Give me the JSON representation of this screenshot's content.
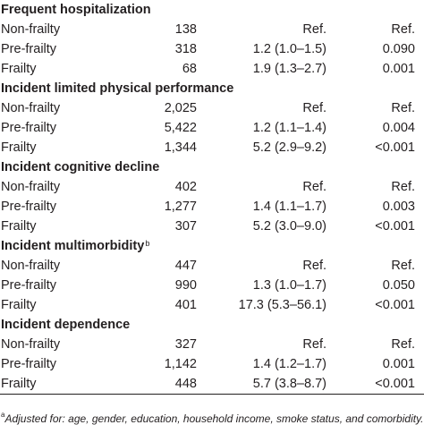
{
  "sections": [
    {
      "title": "Frequent hospitalization",
      "title_sup": "",
      "rows": [
        {
          "label": "Non-frailty",
          "n": "138",
          "or": "Ref.",
          "p": "Ref."
        },
        {
          "label": "Pre-frailty",
          "n": "318",
          "or": "1.2 (1.0–1.5)",
          "p": "0.090"
        },
        {
          "label": "Frailty",
          "n": "68",
          "or": "1.9 (1.3–2.7)",
          "p": "0.001"
        }
      ]
    },
    {
      "title": "Incident limited physical performance",
      "title_sup": "",
      "rows": [
        {
          "label": "Non-frailty",
          "n": "2,025",
          "or": "Ref.",
          "p": "Ref."
        },
        {
          "label": "Pre-frailty",
          "n": "5,422",
          "or": "1.2 (1.1–1.4)",
          "p": "0.004"
        },
        {
          "label": "Frailty",
          "n": "1,344",
          "or": "5.2 (2.9–9.2)",
          "p": "<0.001"
        }
      ]
    },
    {
      "title": "Incident cognitive decline",
      "title_sup": "",
      "rows": [
        {
          "label": "Non-frailty",
          "n": "402",
          "or": "Ref.",
          "p": "Ref."
        },
        {
          "label": "Pre-frailty",
          "n": "1,277",
          "or": "1.4 (1.1–1.7)",
          "p": "0.003"
        },
        {
          "label": "Frailty",
          "n": "307",
          "or": "5.2 (3.0–9.0)",
          "p": "<0.001"
        }
      ]
    },
    {
      "title": "Incident multimorbidity",
      "title_sup": "b",
      "rows": [
        {
          "label": "Non-frailty",
          "n": "447",
          "or": "Ref.",
          "p": "Ref."
        },
        {
          "label": "Pre-frailty",
          "n": "990",
          "or": "1.3 (1.0–1.7)",
          "p": "0.050"
        },
        {
          "label": "Frailty",
          "n": "401",
          "or": "17.3 (5.3–56.1)",
          "p": "<0.001"
        }
      ]
    },
    {
      "title": "Incident dependence",
      "title_sup": "",
      "rows": [
        {
          "label": "Non-frailty",
          "n": "327",
          "or": "Ref.",
          "p": "Ref."
        },
        {
          "label": "Pre-frailty",
          "n": "1,142",
          "or": "1.4 (1.2–1.7)",
          "p": "0.001"
        },
        {
          "label": "Frailty",
          "n": "448",
          "or": "5.7 (3.8–8.7)",
          "p": "<0.001"
        }
      ]
    }
  ],
  "footnote": {
    "marker": "a",
    "text": "Adjusted for: age, gender, education, household income, smoke status, and comorbidity."
  }
}
